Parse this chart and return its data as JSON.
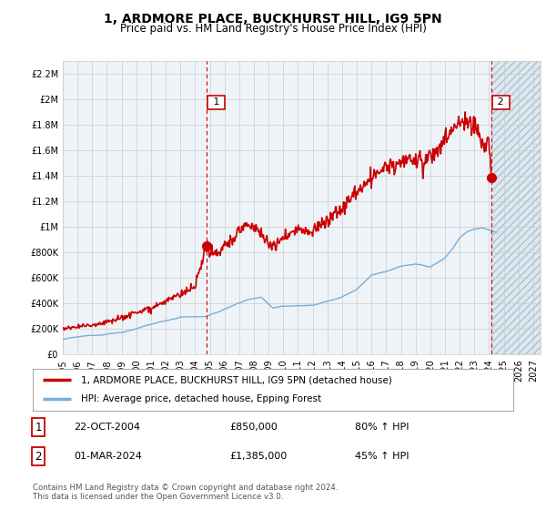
{
  "title": "1, ARDMORE PLACE, BUCKHURST HILL, IG9 5PN",
  "subtitle": "Price paid vs. HM Land Registry's House Price Index (HPI)",
  "ylim": [
    0,
    2300000
  ],
  "yticks": [
    0,
    200000,
    400000,
    600000,
    800000,
    1000000,
    1200000,
    1400000,
    1600000,
    1800000,
    2000000,
    2200000
  ],
  "ytick_labels": [
    "£0",
    "£200K",
    "£400K",
    "£600K",
    "£800K",
    "£1M",
    "£1.2M",
    "£1.4M",
    "£1.6M",
    "£1.8M",
    "£2M",
    "£2.2M"
  ],
  "xlim_start": 1995.0,
  "xlim_end": 2027.5,
  "xtick_years": [
    1995,
    1996,
    1997,
    1998,
    1999,
    2000,
    2001,
    2002,
    2003,
    2004,
    2005,
    2006,
    2007,
    2008,
    2009,
    2010,
    2011,
    2012,
    2013,
    2014,
    2015,
    2016,
    2017,
    2018,
    2019,
    2020,
    2021,
    2022,
    2023,
    2024,
    2025,
    2026,
    2027
  ],
  "red_line_color": "#cc0000",
  "blue_line_color": "#7aaed6",
  "dashed_line_color": "#cc0000",
  "hatch_face_color": "#dce8f0",
  "hatch_edge_color": "#aabbcc",
  "legend_label_red": "1, ARDMORE PLACE, BUCKHURST HILL, IG9 5PN (detached house)",
  "legend_label_blue": "HPI: Average price, detached house, Epping Forest",
  "transaction1_label": "1",
  "transaction1_date": "22-OCT-2004",
  "transaction1_price": "£850,000",
  "transaction1_hpi": "80% ↑ HPI",
  "transaction2_label": "2",
  "transaction2_date": "01-MAR-2024",
  "transaction2_price": "£1,385,000",
  "transaction2_hpi": "45% ↑ HPI",
  "footer": "Contains HM Land Registry data © Crown copyright and database right 2024.\nThis data is licensed under the Open Government Licence v3.0.",
  "title_fontsize": 10,
  "subtitle_fontsize": 8.5,
  "axis_fontsize": 7,
  "legend_fontsize": 7.5,
  "table_fontsize": 8,
  "dashed_x1": 2004.81,
  "dashed_x2": 2024.17,
  "marker1_x": 2004.81,
  "marker1_y": 850000,
  "marker2_x": 2024.17,
  "marker2_y": 1385000,
  "hatch_start": 2024.17,
  "background_color": "#ffffff",
  "grid_color": "#cccccc",
  "chart_bg_color": "#eef3f8"
}
